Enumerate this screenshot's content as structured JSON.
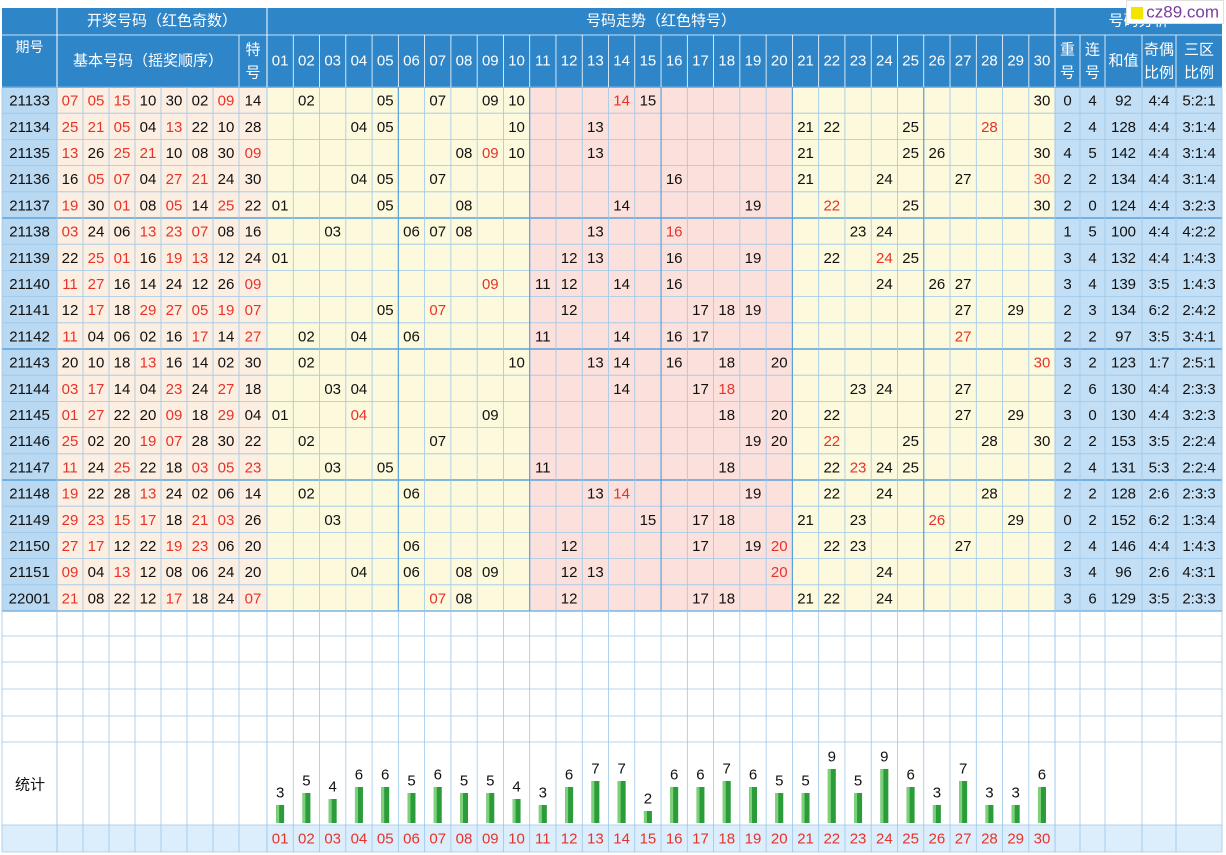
{
  "colors": {
    "header_bg": "#2e86c9",
    "header_text": "#ffffff",
    "period_col": "#b9d8f1",
    "basic_area": "#fdeee2",
    "trend_area": "#fdf9dc",
    "red_band": "#fce0dc",
    "stats_area": "#c3dff5",
    "red_text": "#e6332a",
    "grid_line": "#9cc7ea",
    "bar_green": "#2b9c3a"
  },
  "header": {
    "period": "期号",
    "draw_group": "开奖号码（红色奇数）",
    "basic": "基本号码（摇奖顺序）",
    "special": [
      "特",
      "号"
    ],
    "trend_group": "号码走势（红色特号）",
    "analysis_group": "号码分析",
    "repeat": [
      "重",
      "号"
    ],
    "consecutive": [
      "连",
      "号"
    ],
    "sum": "和值",
    "odd_even": [
      "奇偶",
      "比例"
    ],
    "zones": [
      "三区",
      "比例"
    ]
  },
  "watermark": "cz89.com",
  "stats_label": "统计",
  "chart_data": {
    "type": "table",
    "numbers": [
      "01",
      "02",
      "03",
      "04",
      "05",
      "06",
      "07",
      "08",
      "09",
      "10",
      "11",
      "12",
      "13",
      "14",
      "15",
      "16",
      "17",
      "18",
      "19",
      "20",
      "21",
      "22",
      "23",
      "24",
      "25",
      "26",
      "27",
      "28",
      "29",
      "30"
    ],
    "rows": [
      {
        "period": "21133",
        "basic": [
          "07",
          "05",
          "15",
          "10",
          "30",
          "02",
          "09"
        ],
        "special": "14",
        "repeat": "0",
        "consec": "4",
        "sum": "92",
        "oe": "4:4",
        "zone": "5:2:1"
      },
      {
        "period": "21134",
        "basic": [
          "25",
          "21",
          "05",
          "04",
          "13",
          "22",
          "10"
        ],
        "special": "28",
        "repeat": "2",
        "consec": "4",
        "sum": "128",
        "oe": "4:4",
        "zone": "3:1:4"
      },
      {
        "period": "21135",
        "basic": [
          "13",
          "26",
          "25",
          "21",
          "10",
          "08",
          "30"
        ],
        "special": "09",
        "repeat": "4",
        "consec": "5",
        "sum": "142",
        "oe": "4:4",
        "zone": "3:1:4"
      },
      {
        "period": "21136",
        "basic": [
          "16",
          "05",
          "07",
          "04",
          "27",
          "21",
          "24"
        ],
        "special": "30",
        "repeat": "2",
        "consec": "2",
        "sum": "134",
        "oe": "4:4",
        "zone": "3:1:4"
      },
      {
        "period": "21137",
        "basic": [
          "19",
          "30",
          "01",
          "08",
          "05",
          "14",
          "25"
        ],
        "special": "22",
        "repeat": "2",
        "consec": "0",
        "sum": "124",
        "oe": "4:4",
        "zone": "3:2:3"
      },
      {
        "period": "21138",
        "basic": [
          "03",
          "24",
          "06",
          "13",
          "23",
          "07",
          "08"
        ],
        "special": "16",
        "repeat": "1",
        "consec": "5",
        "sum": "100",
        "oe": "4:4",
        "zone": "4:2:2"
      },
      {
        "period": "21139",
        "basic": [
          "22",
          "25",
          "01",
          "16",
          "19",
          "13",
          "12"
        ],
        "special": "24",
        "repeat": "3",
        "consec": "4",
        "sum": "132",
        "oe": "4:4",
        "zone": "1:4:3"
      },
      {
        "period": "21140",
        "basic": [
          "11",
          "27",
          "16",
          "14",
          "24",
          "12",
          "26"
        ],
        "special": "09",
        "repeat": "3",
        "consec": "4",
        "sum": "139",
        "oe": "3:5",
        "zone": "1:4:3"
      },
      {
        "period": "21141",
        "basic": [
          "12",
          "17",
          "18",
          "29",
          "27",
          "05",
          "19"
        ],
        "special": "07",
        "repeat": "2",
        "consec": "3",
        "sum": "134",
        "oe": "6:2",
        "zone": "2:4:2"
      },
      {
        "period": "21142",
        "basic": [
          "11",
          "04",
          "06",
          "02",
          "16",
          "17",
          "14"
        ],
        "special": "27",
        "repeat": "2",
        "consec": "2",
        "sum": "97",
        "oe": "3:5",
        "zone": "3:4:1"
      },
      {
        "period": "21143",
        "basic": [
          "20",
          "10",
          "18",
          "13",
          "16",
          "14",
          "02"
        ],
        "special": "30",
        "repeat": "3",
        "consec": "2",
        "sum": "123",
        "oe": "1:7",
        "zone": "2:5:1"
      },
      {
        "period": "21144",
        "basic": [
          "03",
          "17",
          "14",
          "04",
          "23",
          "24",
          "27"
        ],
        "special": "18",
        "repeat": "2",
        "consec": "6",
        "sum": "130",
        "oe": "4:4",
        "zone": "2:3:3"
      },
      {
        "period": "21145",
        "basic": [
          "01",
          "27",
          "22",
          "20",
          "09",
          "18",
          "29"
        ],
        "special": "04",
        "repeat": "3",
        "consec": "0",
        "sum": "130",
        "oe": "4:4",
        "zone": "3:2:3"
      },
      {
        "period": "21146",
        "basic": [
          "25",
          "02",
          "20",
          "19",
          "07",
          "28",
          "30"
        ],
        "special": "22",
        "repeat": "2",
        "consec": "2",
        "sum": "153",
        "oe": "3:5",
        "zone": "2:2:4"
      },
      {
        "period": "21147",
        "basic": [
          "11",
          "24",
          "25",
          "22",
          "18",
          "03",
          "05"
        ],
        "special": "23",
        "repeat": "2",
        "consec": "4",
        "sum": "131",
        "oe": "5:3",
        "zone": "2:2:4"
      },
      {
        "period": "21148",
        "basic": [
          "19",
          "22",
          "28",
          "13",
          "24",
          "02",
          "06"
        ],
        "special": "14",
        "repeat": "2",
        "consec": "2",
        "sum": "128",
        "oe": "2:6",
        "zone": "2:3:3"
      },
      {
        "period": "21149",
        "basic": [
          "29",
          "23",
          "15",
          "17",
          "18",
          "21",
          "03"
        ],
        "special": "26",
        "repeat": "0",
        "consec": "2",
        "sum": "152",
        "oe": "6:2",
        "zone": "1:3:4"
      },
      {
        "period": "21150",
        "basic": [
          "27",
          "17",
          "12",
          "22",
          "19",
          "23",
          "06"
        ],
        "special": "20",
        "repeat": "2",
        "consec": "4",
        "sum": "146",
        "oe": "4:4",
        "zone": "1:4:3"
      },
      {
        "period": "21151",
        "basic": [
          "09",
          "04",
          "13",
          "12",
          "08",
          "06",
          "24"
        ],
        "special": "20",
        "repeat": "3",
        "consec": "4",
        "sum": "96",
        "oe": "2:6",
        "zone": "4:3:1"
      },
      {
        "period": "22001",
        "basic": [
          "21",
          "08",
          "22",
          "12",
          "17",
          "18",
          "24"
        ],
        "special": "07",
        "repeat": "3",
        "consec": "6",
        "sum": "129",
        "oe": "3:5",
        "zone": "2:3:3"
      }
    ],
    "counts": [
      3,
      5,
      4,
      6,
      6,
      5,
      6,
      5,
      5,
      4,
      3,
      6,
      7,
      7,
      2,
      6,
      6,
      7,
      6,
      5,
      5,
      9,
      5,
      9,
      6,
      3,
      7,
      3,
      3,
      6
    ]
  }
}
